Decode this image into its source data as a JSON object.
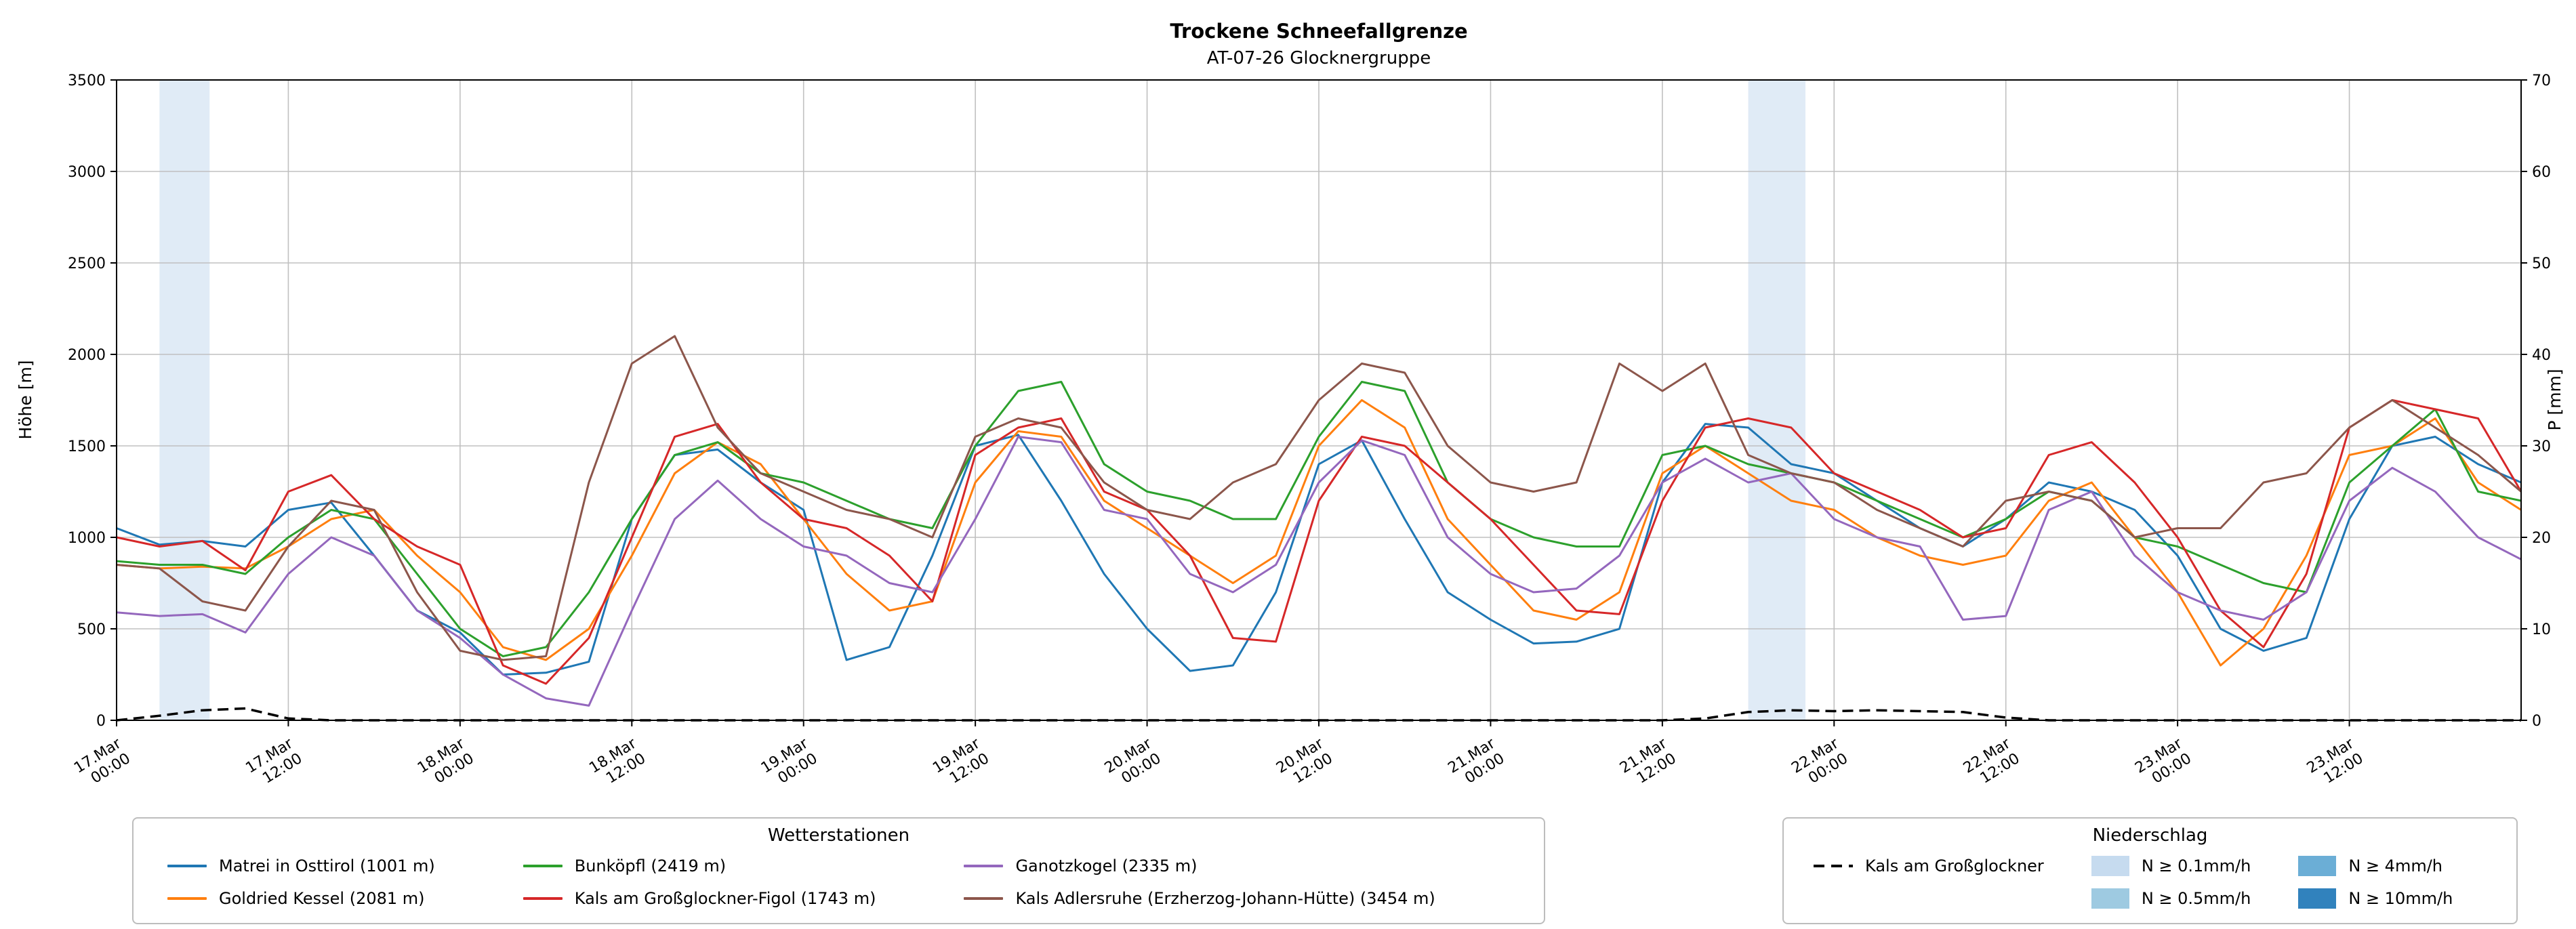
{
  "chart_data": {
    "type": "line",
    "title": "Trockene Schneefallgrenze",
    "subtitle": "AT-07-26 Glocknergruppe",
    "ylabel_left": "Höhe [m]",
    "ylabel_right": "P [mm]",
    "ylim_left": [
      0,
      3500
    ],
    "ytick_step_left": 500,
    "ylim_right": [
      0,
      70
    ],
    "ytick_step_right": 10,
    "grid": true,
    "x_unit": "hours since 17 Mar 00:00",
    "x_range": [
      0,
      168
    ],
    "x_step_hours": 3,
    "x_ticks": [
      {
        "hour": 0,
        "line1": "17.Mar",
        "line2": "00:00"
      },
      {
        "hour": 12,
        "line1": "17.Mar",
        "line2": "12:00"
      },
      {
        "hour": 24,
        "line1": "18.Mar",
        "line2": "00:00"
      },
      {
        "hour": 36,
        "line1": "18.Mar",
        "line2": "12:00"
      },
      {
        "hour": 48,
        "line1": "19.Mar",
        "line2": "00:00"
      },
      {
        "hour": 60,
        "line1": "19.Mar",
        "line2": "12:00"
      },
      {
        "hour": 72,
        "line1": "20.Mar",
        "line2": "00:00"
      },
      {
        "hour": 84,
        "line1": "20.Mar",
        "line2": "12:00"
      },
      {
        "hour": 96,
        "line1": "21.Mar",
        "line2": "00:00"
      },
      {
        "hour": 108,
        "line1": "21.Mar",
        "line2": "12:00"
      },
      {
        "hour": 120,
        "line1": "22.Mar",
        "line2": "00:00"
      },
      {
        "hour": 132,
        "line1": "22.Mar",
        "line2": "12:00"
      },
      {
        "hour": 144,
        "line1": "23.Mar",
        "line2": "00:00"
      },
      {
        "hour": 156,
        "line1": "23.Mar",
        "line2": "12:00"
      }
    ],
    "series": [
      {
        "name": "Matrei in Osttirol (1001 m)",
        "color": "#1f77b4",
        "axis": "left",
        "values": [
          1050,
          960,
          980,
          950,
          1150,
          1190,
          900,
          600,
          480,
          250,
          260,
          320,
          1100,
          1450,
          1480,
          1300,
          1150,
          330,
          400,
          900,
          1500,
          1560,
          1200,
          800,
          500,
          270,
          300,
          700,
          1400,
          1530,
          1100,
          700,
          550,
          420,
          430,
          500,
          1300,
          1620,
          1600,
          1400,
          1350,
          1200,
          1050,
          950,
          1100,
          1300,
          1250,
          1150,
          900,
          500,
          380,
          450,
          1100,
          1500,
          1550,
          1400,
          1300
        ]
      },
      {
        "name": "Goldried Kessel (2081 m)",
        "color": "#ff7f0e",
        "axis": "left",
        "values": [
          850,
          830,
          840,
          830,
          950,
          1100,
          1150,
          900,
          700,
          400,
          330,
          500,
          900,
          1350,
          1520,
          1400,
          1100,
          800,
          600,
          650,
          1300,
          1580,
          1550,
          1200,
          1050,
          900,
          750,
          900,
          1500,
          1750,
          1600,
          1100,
          850,
          600,
          550,
          700,
          1350,
          1500,
          1350,
          1200,
          1150,
          1000,
          900,
          850,
          900,
          1200,
          1300,
          1000,
          700,
          300,
          500,
          900,
          1450,
          1500,
          1650,
          1300,
          1150
        ]
      },
      {
        "name": "Bunköpfl (2419 m)",
        "color": "#2ca02c",
        "axis": "left",
        "values": [
          870,
          850,
          850,
          800,
          1000,
          1150,
          1100,
          800,
          500,
          350,
          400,
          700,
          1100,
          1450,
          1520,
          1350,
          1300,
          1200,
          1100,
          1050,
          1500,
          1800,
          1850,
          1400,
          1250,
          1200,
          1100,
          1100,
          1550,
          1850,
          1800,
          1300,
          1100,
          1000,
          950,
          950,
          1450,
          1500,
          1400,
          1350,
          1300,
          1200,
          1100,
          1000,
          1100,
          1250,
          1200,
          1000,
          950,
          850,
          750,
          700,
          1300,
          1500,
          1700,
          1250,
          1200
        ]
      },
      {
        "name": "Kals am Großglockner-Figol (1743 m)",
        "color": "#d62728",
        "axis": "left",
        "values": [
          1000,
          950,
          980,
          820,
          1250,
          1340,
          1100,
          950,
          850,
          300,
          200,
          450,
          1000,
          1550,
          1620,
          1300,
          1100,
          1050,
          900,
          650,
          1450,
          1600,
          1650,
          1250,
          1150,
          900,
          450,
          430,
          1200,
          1550,
          1500,
          1300,
          1100,
          850,
          600,
          580,
          1200,
          1600,
          1650,
          1600,
          1350,
          1250,
          1150,
          1000,
          1050,
          1450,
          1520,
          1300,
          1000,
          600,
          400,
          800,
          1600,
          1750,
          1700,
          1650,
          1250
        ]
      },
      {
        "name": "Ganotzkogel (2335 m)",
        "color": "#9467bd",
        "axis": "left",
        "values": [
          590,
          570,
          580,
          480,
          800,
          1000,
          900,
          600,
          450,
          250,
          120,
          80,
          600,
          1100,
          1310,
          1100,
          950,
          900,
          750,
          700,
          1100,
          1550,
          1520,
          1150,
          1100,
          800,
          700,
          850,
          1300,
          1530,
          1450,
          1000,
          800,
          700,
          720,
          900,
          1300,
          1430,
          1300,
          1350,
          1100,
          1000,
          950,
          550,
          570,
          1150,
          1250,
          900,
          700,
          600,
          550,
          700,
          1200,
          1380,
          1250,
          1000,
          880
        ]
      },
      {
        "name": "Kals Adlersruhe (Erzherzog-Johann-Hütte) (3454 m)",
        "color": "#8c564b",
        "axis": "left",
        "values": [
          850,
          830,
          650,
          600,
          950,
          1200,
          1150,
          700,
          380,
          330,
          350,
          1300,
          1950,
          2100,
          1600,
          1350,
          1250,
          1150,
          1100,
          1000,
          1550,
          1650,
          1600,
          1300,
          1150,
          1100,
          1300,
          1400,
          1750,
          1950,
          1900,
          1500,
          1300,
          1250,
          1300,
          1950,
          1800,
          1950,
          1450,
          1350,
          1300,
          1150,
          1050,
          950,
          1200,
          1250,
          1200,
          1000,
          1050,
          1050,
          1300,
          1350,
          1600,
          1750,
          1600,
          1450,
          1250
        ]
      }
    ],
    "precip_series": {
      "name": "Kals am Großglockner",
      "color": "#000000",
      "style": "dashed",
      "axis": "right",
      "values": [
        0,
        0.5,
        1.1,
        1.3,
        0.2,
        0,
        0,
        0,
        0,
        0,
        0,
        0,
        0,
        0,
        0,
        0,
        0,
        0,
        0,
        0,
        0,
        0,
        0,
        0,
        0,
        0,
        0,
        0,
        0,
        0,
        0,
        0,
        0,
        0,
        0,
        0,
        0,
        0.2,
        0.9,
        1.1,
        1.0,
        1.1,
        1.0,
        0.9,
        0.3,
        0,
        0,
        0,
        0,
        0,
        0,
        0,
        0,
        0,
        0,
        0,
        0
      ]
    },
    "precip_bands": [
      {
        "from_hour": 3,
        "to_hour": 6.5,
        "level": "N ≥ 0.1mm/h",
        "color": "#c6dbef"
      },
      {
        "from_hour": 114,
        "to_hour": 118,
        "level": "N ≥ 0.1mm/h",
        "color": "#c6dbef"
      }
    ]
  },
  "legend_weather": {
    "title": "Wetterstationen",
    "items": [
      {
        "label": "Matrei in Osttirol (1001 m)",
        "color": "#1f77b4"
      },
      {
        "label": "Goldried Kessel (2081 m)",
        "color": "#ff7f0e"
      },
      {
        "label": "Bunköpfl (2419 m)",
        "color": "#2ca02c"
      },
      {
        "label": "Kals am Großglockner-Figol (1743 m)",
        "color": "#d62728"
      },
      {
        "label": "Ganotzkogel (2335 m)",
        "color": "#9467bd"
      },
      {
        "label": "Kals Adlersruhe (Erzherzog-Johann-Hütte) (3454 m)",
        "color": "#8c564b"
      }
    ]
  },
  "legend_precip": {
    "title": "Niederschlag",
    "line_item": {
      "label": "Kals am Großglockner",
      "color": "#000000"
    },
    "band_items": [
      {
        "label": "N ≥ 0.1mm/h",
        "color": "#c6dbef"
      },
      {
        "label": "N ≥ 0.5mm/h",
        "color": "#9ecae1"
      },
      {
        "label": "N ≥ 4mm/h",
        "color": "#6baed6"
      },
      {
        "label": "N ≥ 10mm/h",
        "color": "#3182bd"
      }
    ]
  }
}
